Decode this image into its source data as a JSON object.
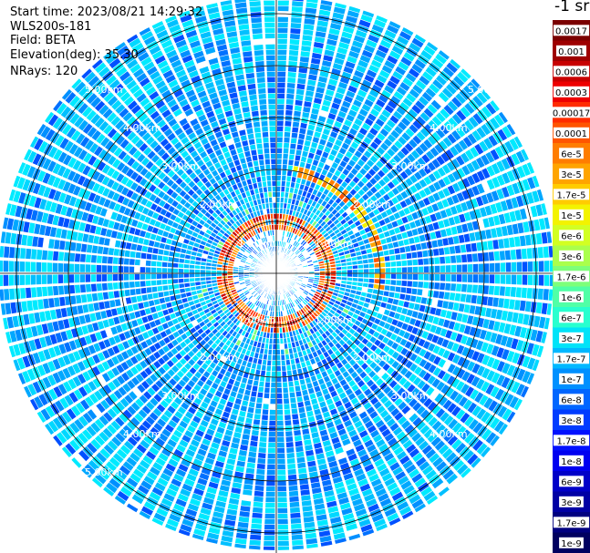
{
  "header": {
    "start_time": "Start time: 2023/08/21 14:29:32",
    "instrument": "WLS200s-181",
    "field": "Field: BETA",
    "elevation": "Elevation(deg): 35.30",
    "nrays": "NRays: 120"
  },
  "colorbar": {
    "unit_label": "-1 sr",
    "labels": [
      "0.0017",
      "0.001",
      "0.0006",
      "0.0003",
      "0.00017",
      "0.0001",
      "6e-5",
      "3e-5",
      "1.7e-5",
      "1e-5",
      "6e-6",
      "3e-6",
      "1.7e-6",
      "1e-6",
      "6e-7",
      "3e-7",
      "1.7e-7",
      "1e-7",
      "6e-8",
      "3e-8",
      "1.7e-8",
      "1e-8",
      "6e-9",
      "3e-9",
      "1.7e-9",
      "1e-9"
    ],
    "colors": [
      "#7b0000",
      "#9e0000",
      "#c80000",
      "#ee0000",
      "#ff2c00",
      "#ff5500",
      "#ff7d00",
      "#ffa400",
      "#ffcc00",
      "#f3f300",
      "#d2ff23",
      "#aaff4c",
      "#7dff7a",
      "#50ffa6",
      "#28ffcf",
      "#00e3f8",
      "#00b8ff",
      "#0090ff",
      "#0066ff",
      "#003cff",
      "#0010ff",
      "#0000f0",
      "#0000c8",
      "#0000a4",
      "#000080",
      "#000060"
    ]
  },
  "chart_data": {
    "type": "heatmap",
    "projection": "polar-ppi",
    "quantity": "BETA",
    "n_rays": 120,
    "range_rings_km": [
      1.0,
      2.0,
      3.0,
      4.0,
      5.0
    ],
    "ring_labels": [
      "1.00km",
      "2.00km",
      "3.00km",
      "4.00km",
      "5.00km"
    ],
    "max_range_km": 5.35,
    "colorbar_ticks": [
      0.0017,
      0.001,
      0.0006,
      0.0003,
      0.00017,
      0.0001,
      6e-05,
      3e-05,
      1.7e-05,
      1e-05,
      6e-06,
      3e-06,
      1.7e-06,
      1e-06,
      6e-07,
      3e-07,
      1.7e-07,
      1e-07,
      6e-08,
      3e-08,
      1.7e-08,
      1e-08,
      6e-09,
      3e-09,
      1.7e-09,
      1e-09
    ],
    "features": [
      {
        "description": "enhanced backscatter ring",
        "range_km": 1.0,
        "approx_value": 0.0001
      },
      {
        "description": "enhanced backscatter arc NE",
        "range_km": 2.0,
        "azimuth_deg": [
          10,
          100
        ],
        "approx_value": 3e-05
      }
    ],
    "background_value": 1e-08
  }
}
